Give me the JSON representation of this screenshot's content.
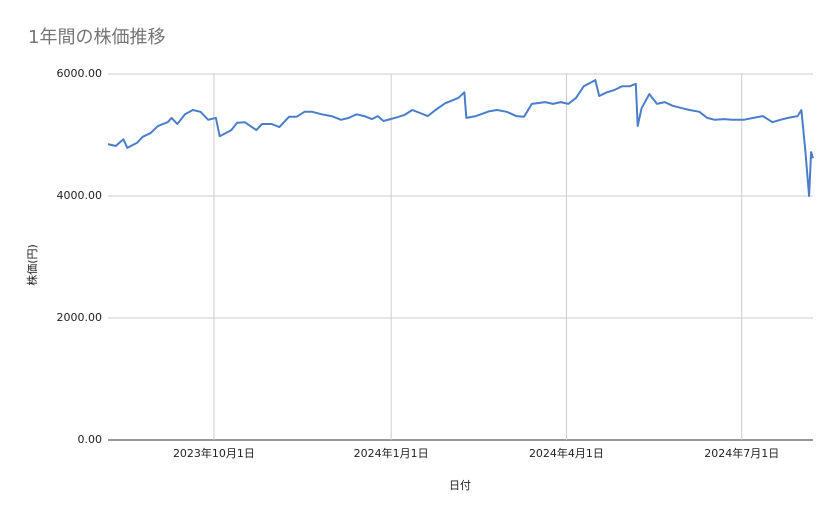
{
  "chart_data": {
    "type": "line",
    "title": "1年間の株価推移",
    "xlabel": "日付",
    "ylabel": "株価(円)",
    "x": [
      "2023-08-07",
      "2023-08-11",
      "2023-08-15",
      "2023-08-17",
      "2023-08-22",
      "2023-08-25",
      "2023-08-29",
      "2023-09-02",
      "2023-09-07",
      "2023-09-09",
      "2023-09-12",
      "2023-09-16",
      "2023-09-20",
      "2023-09-24",
      "2023-09-28",
      "2023-10-02",
      "2023-10-04",
      "2023-10-10",
      "2023-10-13",
      "2023-10-17",
      "2023-10-23",
      "2023-10-26",
      "2023-10-31",
      "2023-11-04",
      "2023-11-09",
      "2023-11-13",
      "2023-11-17",
      "2023-11-21",
      "2023-11-26",
      "2023-12-01",
      "2023-12-06",
      "2023-12-10",
      "2023-12-14",
      "2023-12-18",
      "2023-12-22",
      "2023-12-25",
      "2023-12-28",
      "2024-01-03",
      "2024-01-08",
      "2024-01-12",
      "2024-01-16",
      "2024-01-20",
      "2024-01-24",
      "2024-01-29",
      "2024-02-02",
      "2024-02-05",
      "2024-02-08",
      "2024-02-09",
      "2024-02-14",
      "2024-02-21",
      "2024-02-25",
      "2024-03-01",
      "2024-03-06",
      "2024-03-10",
      "2024-03-14",
      "2024-03-21",
      "2024-03-25",
      "2024-03-29",
      "2024-04-02",
      "2024-04-06",
      "2024-04-10",
      "2024-04-16",
      "2024-04-18",
      "2024-04-22",
      "2024-04-26",
      "2024-04-30",
      "2024-05-04",
      "2024-05-07",
      "2024-05-08",
      "2024-05-10",
      "2024-05-14",
      "2024-05-18",
      "2024-05-22",
      "2024-05-26",
      "2024-05-31",
      "2024-06-04",
      "2024-06-09",
      "2024-06-13",
      "2024-06-17",
      "2024-06-22",
      "2024-06-26",
      "2024-07-02",
      "2024-07-07",
      "2024-07-12",
      "2024-07-17",
      "2024-07-21",
      "2024-07-25",
      "2024-07-30",
      "2024-08-01",
      "2024-08-03",
      "2024-08-05",
      "2024-08-06",
      "2024-08-07"
    ],
    "series": [
      {
        "name": "株価",
        "color": "#4a7ecb",
        "values": [
          4850,
          4820,
          4930,
          4790,
          4870,
          4970,
          5030,
          5150,
          5210,
          5280,
          5180,
          5340,
          5410,
          5380,
          5250,
          5280,
          4980,
          5080,
          5200,
          5210,
          5080,
          5180,
          5180,
          5130,
          5300,
          5300,
          5380,
          5380,
          5340,
          5310,
          5250,
          5280,
          5340,
          5310,
          5260,
          5310,
          5230,
          5280,
          5330,
          5410,
          5360,
          5310,
          5410,
          5520,
          5570,
          5610,
          5700,
          5280,
          5310,
          5390,
          5410,
          5380,
          5310,
          5300,
          5510,
          5540,
          5510,
          5540,
          5510,
          5610,
          5800,
          5900,
          5640,
          5700,
          5740,
          5800,
          5800,
          5840,
          5150,
          5440,
          5670,
          5510,
          5540,
          5480,
          5440,
          5410,
          5380,
          5280,
          5250,
          5260,
          5250,
          5250,
          5280,
          5310,
          5210,
          5250,
          5280,
          5310,
          5410,
          4750,
          4000,
          4720,
          4620
        ]
      }
    ],
    "xlim": [
      "2023-08-07",
      "2024-08-07"
    ],
    "xticks": [
      {
        "value": "2023-10-01",
        "label": "2023年10月1日"
      },
      {
        "value": "2024-01-01",
        "label": "2024年1月1日"
      },
      {
        "value": "2024-04-01",
        "label": "2024年4月1日"
      },
      {
        "value": "2024-07-01",
        "label": "2024年7月1日"
      }
    ],
    "ylim": [
      0,
      6000
    ],
    "yticks": [
      {
        "value": 0,
        "label": "0.00"
      },
      {
        "value": 2000,
        "label": "2000.00"
      },
      {
        "value": 4000,
        "label": "4000.00"
      },
      {
        "value": 6000,
        "label": "6000.00"
      }
    ],
    "grid": true
  }
}
